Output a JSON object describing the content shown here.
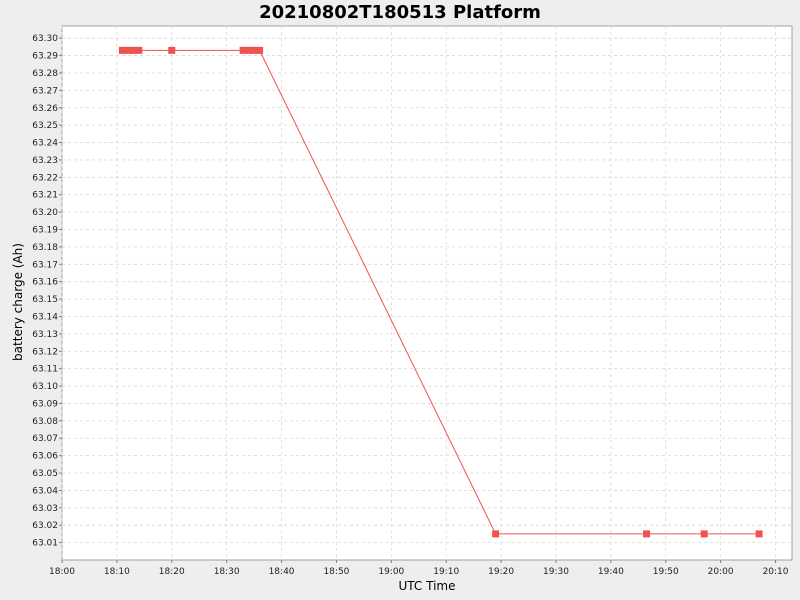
{
  "chart_data": {
    "type": "line",
    "title": "20210802T180513 Platform",
    "xlabel": "UTC Time",
    "ylabel": "battery charge (Ah)",
    "x_ticks": [
      "18:00",
      "18:10",
      "18:20",
      "18:30",
      "18:40",
      "18:50",
      "19:00",
      "19:10",
      "19:20",
      "19:30",
      "19:40",
      "19:50",
      "20:00",
      "20:10"
    ],
    "y_ticks": [
      "63.01",
      "63.02",
      "63.03",
      "63.04",
      "63.05",
      "63.06",
      "63.07",
      "63.08",
      "63.09",
      "63.10",
      "63.11",
      "63.12",
      "63.13",
      "63.14",
      "63.15",
      "63.16",
      "63.17",
      "63.18",
      "63.19",
      "63.20",
      "63.21",
      "63.22",
      "63.23",
      "63.24",
      "63.25",
      "63.26",
      "63.27",
      "63.28",
      "63.29",
      "63.30"
    ],
    "xlim": [
      "18:00",
      "20:13"
    ],
    "ylim": [
      63.0,
      63.307
    ],
    "grid": true,
    "series": [
      {
        "color": "#ef5350",
        "points": [
          {
            "x": "18:11:00",
            "y": 63.293
          },
          {
            "x": "18:12:00",
            "y": 63.293
          },
          {
            "x": "18:13:00",
            "y": 63.293
          },
          {
            "x": "18:14:00",
            "y": 63.293
          },
          {
            "x": "18:20:00",
            "y": 63.293
          },
          {
            "x": "18:33:00",
            "y": 63.293
          },
          {
            "x": "18:34:00",
            "y": 63.293
          },
          {
            "x": "18:35:00",
            "y": 63.293
          },
          {
            "x": "18:36:00",
            "y": 63.293
          },
          {
            "x": "19:19:00",
            "y": 63.015
          },
          {
            "x": "19:46:30",
            "y": 63.015
          },
          {
            "x": "19:57:00",
            "y": 63.015
          },
          {
            "x": "20:07:00",
            "y": 63.015
          }
        ]
      }
    ]
  }
}
